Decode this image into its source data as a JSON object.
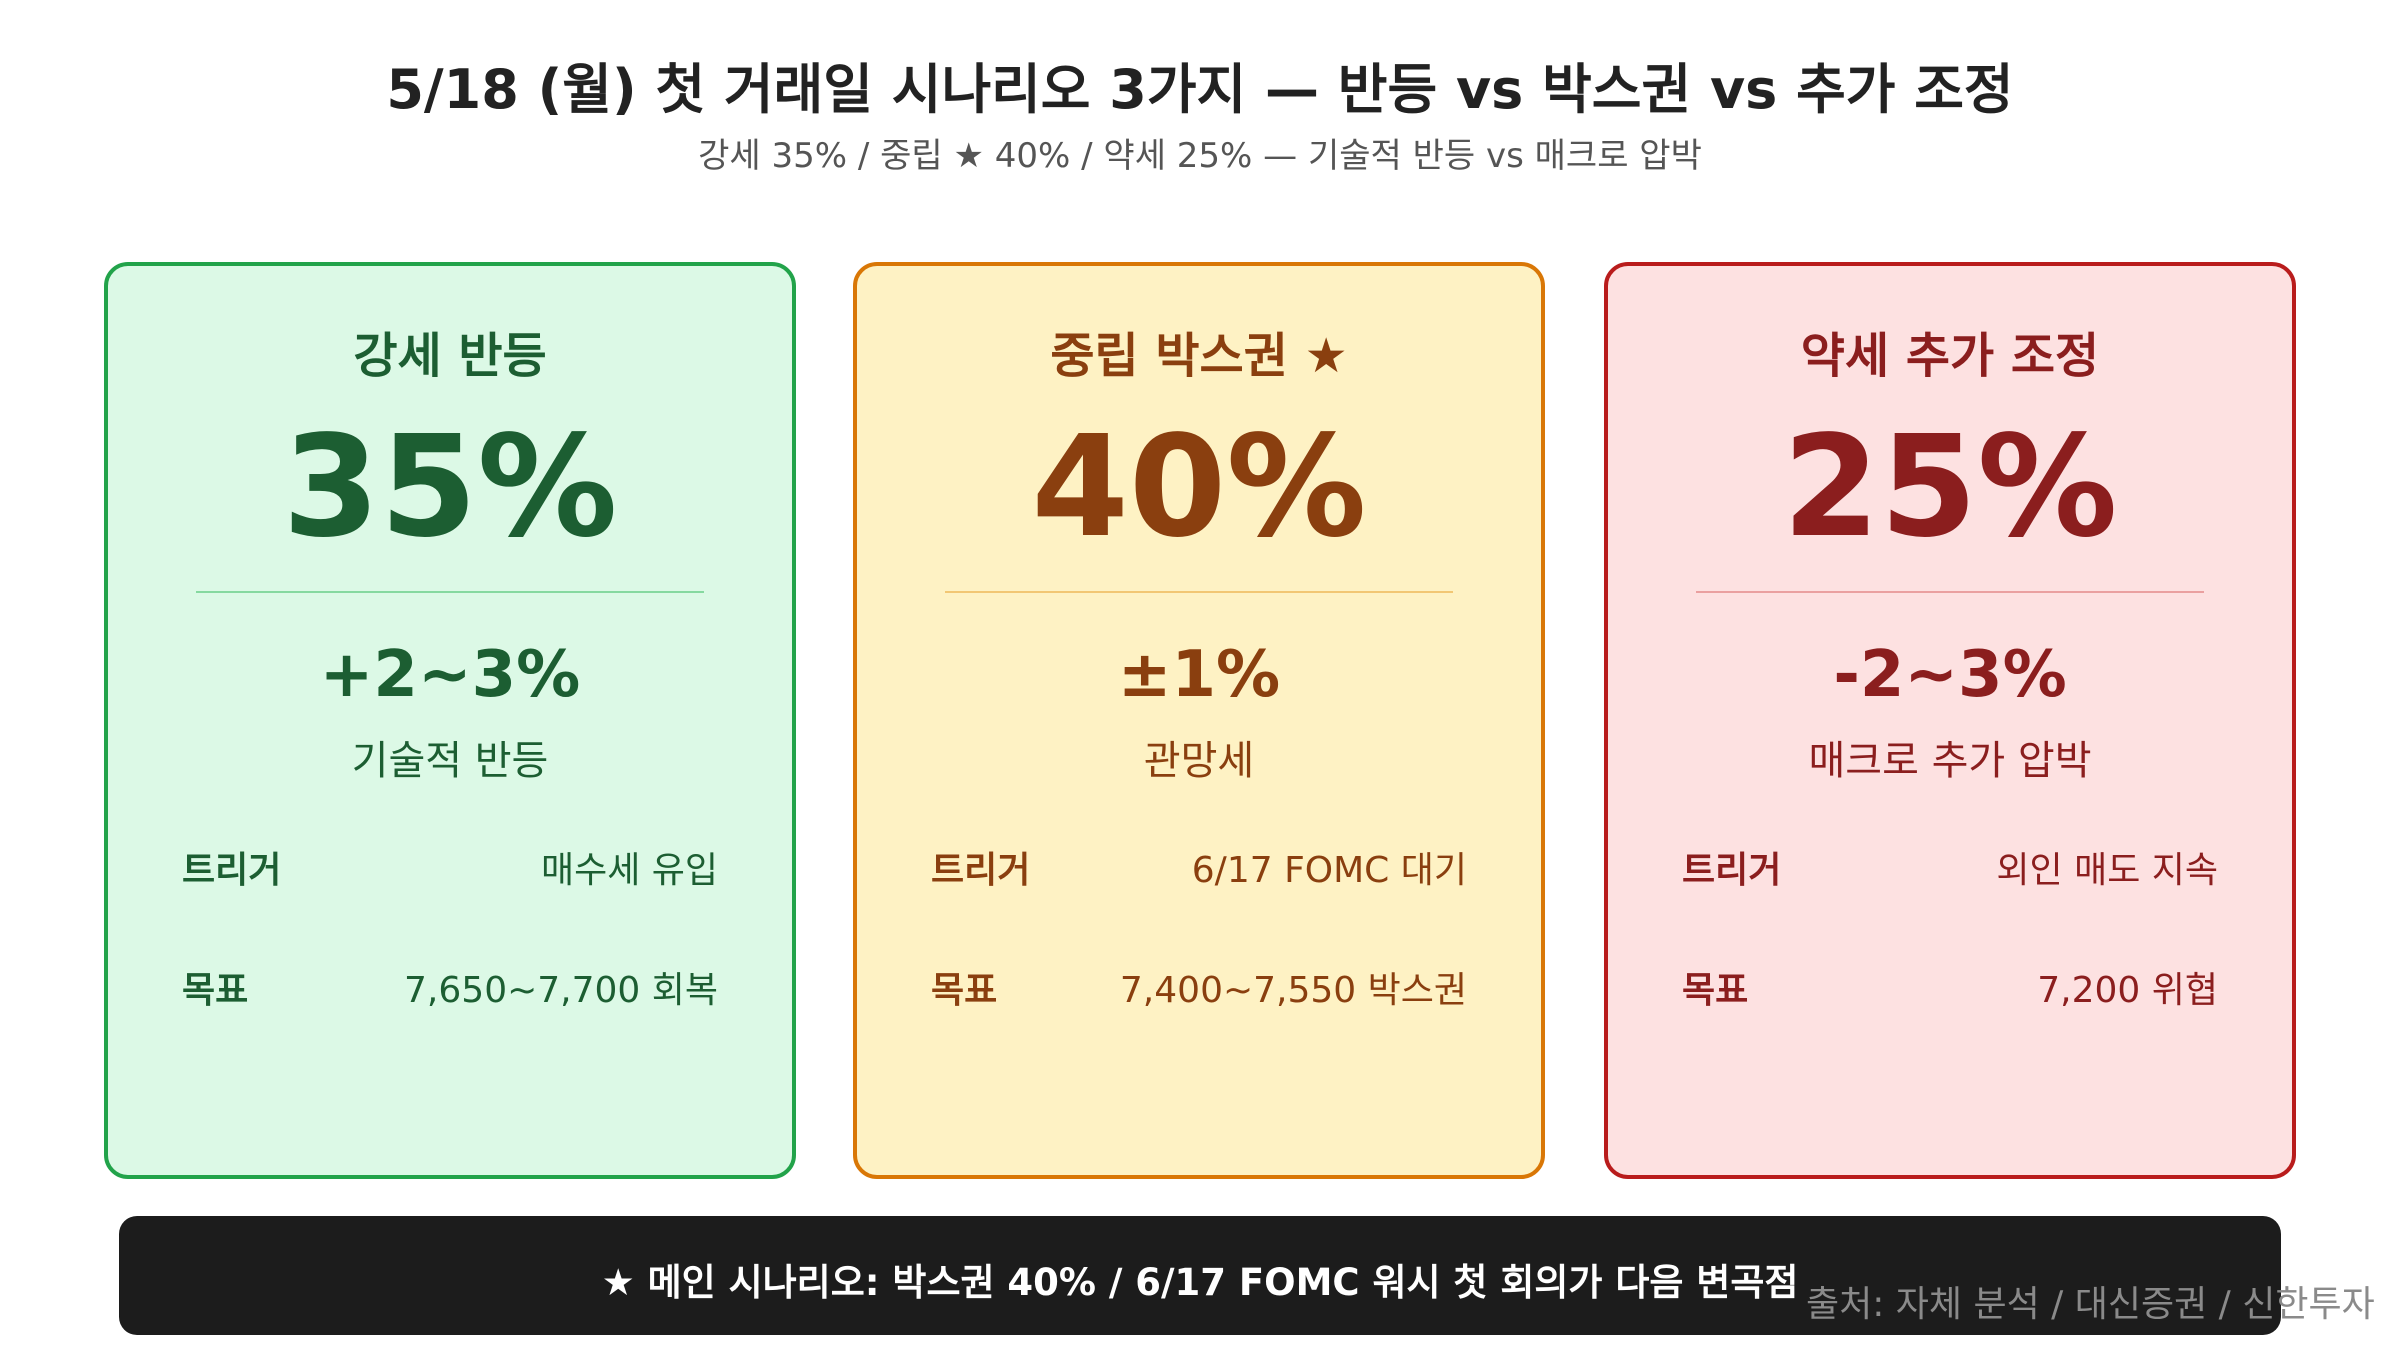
{
  "header": {
    "title": "5/18 (월) 첫 거래일 시나리오 3가지 — 반등 vs 박스권 vs 추가 조정",
    "subtitle": "강세 35% / 중립 ★ 40% / 약세 25% — 기술적 반등 vs 매크로 압박"
  },
  "cards": [
    {
      "title": "강세 반등",
      "percent": "35%",
      "change": "+2~3%",
      "description": "기술적 반등",
      "rows": [
        {
          "label": "트리거",
          "value": "매수세 유입"
        },
        {
          "label": "목표",
          "value": "7,650~7,700 회복"
        }
      ]
    },
    {
      "title": "중립 박스권 ★",
      "percent": "40%",
      "change": "±1%",
      "description": "관망세",
      "rows": [
        {
          "label": "트리거",
          "value": "6/17 FOMC 대기"
        },
        {
          "label": "목표",
          "value": "7,400~7,550 박스권"
        }
      ]
    },
    {
      "title": "약세 추가 조정",
      "percent": "25%",
      "change": "-2~3%",
      "description": "매크로 추가 압박",
      "rows": [
        {
          "label": "트리거",
          "value": "외인 매도 지속"
        },
        {
          "label": "목표",
          "value": "7,200 위협"
        }
      ]
    }
  ],
  "footer": {
    "banner": "★ 메인 시나리오: 박스권 40% / 6/17 FOMC 워시 첫 회의가 다음 변곡점",
    "source": "출처: 자체 분석 / 대신증권 / 신한투자"
  }
}
